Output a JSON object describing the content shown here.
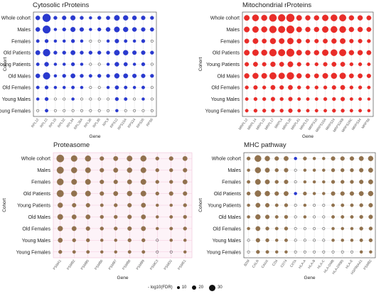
{
  "legend": {
    "title": "- log10(FDR)",
    "items": [
      {
        "label": "10",
        "value": 10
      },
      {
        "label": "20",
        "value": 20
      },
      {
        "label": "30",
        "value": 30
      }
    ]
  },
  "chart_data": [
    {
      "type": "scatter",
      "title": "Cytosolic rProteins",
      "xlabel": "Gene",
      "ylabel": "Cohort",
      "color": "#1f2fcc",
      "size_metric": "-log10(FDR)",
      "y": [
        "Whole cohort",
        "Males",
        "Females",
        "Old Patients",
        "Young Patients",
        "Old Males",
        "Old Females",
        "Young Males",
        "Young Females"
      ],
      "x": [
        "RPL12",
        "RPL13",
        "RPL15",
        "RPL32",
        "RPL34",
        "RPL35A",
        "RPL36",
        "RPL38",
        "RPL9",
        "RPS12",
        "RPS15A",
        "RPS24",
        "RPS26",
        "RPS6"
      ],
      "values": [
        [
          9,
          30,
          6,
          8,
          11,
          6,
          4,
          6,
          7,
          14,
          12,
          9,
          8,
          6
        ],
        [
          9,
          28,
          4,
          6,
          11,
          8,
          4,
          6,
          9,
          14,
          12,
          9,
          8,
          7
        ],
        [
          5,
          6,
          4,
          4,
          6,
          4,
          3,
          3,
          4,
          8,
          5,
          4,
          6,
          3
        ],
        [
          10,
          24,
          6,
          6,
          10,
          6,
          6,
          6,
          6,
          14,
          12,
          8,
          8,
          6
        ],
        [
          5,
          9,
          4,
          4,
          6,
          4,
          3,
          3,
          4,
          9,
          7,
          4,
          6,
          3
        ],
        [
          9,
          23,
          4,
          6,
          10,
          6,
          5,
          6,
          6,
          12,
          10,
          8,
          8,
          6
        ],
        [
          5,
          6,
          4,
          4,
          5,
          4,
          3,
          3,
          4,
          7,
          5,
          4,
          5,
          3
        ],
        [
          4,
          6,
          3,
          3,
          4,
          3,
          3,
          3,
          3,
          6,
          5,
          3,
          4,
          3
        ],
        [
          3,
          5,
          3,
          3,
          3,
          3,
          3,
          3,
          3,
          4,
          3,
          3,
          3,
          3
        ]
      ]
    },
    {
      "type": "scatter",
      "title": "Mitochondrial rProteins",
      "xlabel": "Gene",
      "ylabel": "Cohort",
      "color": "#e8221e",
      "size_metric": "-log10(FDR)",
      "y": [
        "Whole cohort",
        "Males",
        "Females",
        "Old Patients",
        "Young Patients",
        "Old Males",
        "Old Females",
        "Young Males",
        "Young Females"
      ],
      "x": [
        "MRPL12",
        "MRPL14",
        "MRPL15",
        "MRPL17",
        "MRPL4",
        "MRPL28",
        "MRPL41",
        "MRPL51",
        "MRPS16",
        "MRPS18A",
        "MRPS24",
        "MRPS26B",
        "MRPS26C",
        "MRPS34",
        "MRPS6"
      ],
      "values": [
        [
          14,
          20,
          16,
          26,
          24,
          30,
          14,
          12,
          12,
          18,
          20,
          22,
          12,
          12,
          10
        ],
        [
          14,
          18,
          16,
          24,
          22,
          28,
          14,
          12,
          12,
          18,
          20,
          20,
          12,
          12,
          10
        ],
        [
          10,
          14,
          10,
          16,
          14,
          18,
          10,
          8,
          8,
          10,
          12,
          14,
          8,
          8,
          6
        ],
        [
          14,
          18,
          16,
          24,
          22,
          28,
          14,
          12,
          12,
          18,
          20,
          22,
          12,
          12,
          10
        ],
        [
          8,
          10,
          8,
          12,
          10,
          14,
          8,
          6,
          6,
          8,
          10,
          10,
          6,
          6,
          5
        ],
        [
          12,
          16,
          14,
          22,
          18,
          24,
          12,
          10,
          10,
          14,
          16,
          18,
          10,
          10,
          8
        ],
        [
          6,
          8,
          6,
          10,
          8,
          10,
          6,
          6,
          6,
          6,
          8,
          10,
          6,
          6,
          5
        ],
        [
          5,
          6,
          6,
          8,
          6,
          8,
          5,
          5,
          5,
          6,
          6,
          8,
          5,
          5,
          4
        ],
        [
          5,
          6,
          6,
          6,
          6,
          8,
          5,
          5,
          5,
          5,
          6,
          6,
          5,
          5,
          4
        ]
      ]
    },
    {
      "type": "scatter",
      "title": "Proteasome",
      "xlabel": "Gene",
      "ylabel": "Cohort",
      "color": "#8b6a44",
      "size_metric": "-log10(FDR)",
      "y": [
        "Whole cohort",
        "Males",
        "Females",
        "Old Patients",
        "Young Patients",
        "Old Males",
        "Old Females",
        "Young Males",
        "Young Females"
      ],
      "x": [
        "PSMA1",
        "PSMB2",
        "PSMB5",
        "PSMB6",
        "PSMB7",
        "PSMB8",
        "PSMB9",
        "PSMC3",
        "PSMD2",
        "PSME1"
      ],
      "values": [
        [
          26,
          18,
          16,
          8,
          10,
          14,
          16,
          6,
          8,
          10
        ],
        [
          22,
          16,
          14,
          8,
          10,
          12,
          14,
          6,
          6,
          8
        ],
        [
          20,
          14,
          14,
          8,
          8,
          10,
          14,
          6,
          6,
          10
        ],
        [
          22,
          16,
          14,
          8,
          10,
          12,
          14,
          6,
          8,
          8
        ],
        [
          12,
          8,
          8,
          5,
          6,
          8,
          10,
          4,
          4,
          6
        ],
        [
          14,
          10,
          10,
          6,
          6,
          8,
          10,
          4,
          5,
          6
        ],
        [
          12,
          10,
          8,
          6,
          6,
          8,
          10,
          4,
          5,
          6
        ],
        [
          10,
          6,
          6,
          4,
          4,
          6,
          6,
          3,
          4,
          4
        ],
        [
          6,
          5,
          5,
          4,
          4,
          5,
          5,
          3,
          3,
          4
        ]
      ]
    },
    {
      "type": "scatter",
      "title": "MHC pathway",
      "xlabel": "Gene",
      "ylabel": "Cohort",
      "color": "#8b6a44",
      "alt_color": "#1f2fcc",
      "size_metric": "-log10(FDR)",
      "y": [
        "Whole cohort",
        "Males",
        "Females",
        "Old Patients",
        "Young Patients",
        "Old Males",
        "Old Females",
        "Young Males",
        "Young Females"
      ],
      "x": [
        "B2M",
        "CALR",
        "CANX",
        "CD4",
        "CD74",
        "CIITA",
        "HLA-A",
        "HLA-B",
        "HLA-C",
        "HLA-DMB",
        "HLA-DRB5",
        "HLA-E",
        "HSP90AA1",
        "PSMB2"
      ],
      "values": [
        [
          6,
          20,
          12,
          8,
          10,
          4,
          6,
          4,
          4,
          8,
          8,
          8,
          10,
          12
        ],
        [
          4,
          16,
          10,
          6,
          8,
          3,
          4,
          4,
          4,
          6,
          6,
          6,
          8,
          10
        ],
        [
          5,
          14,
          10,
          6,
          8,
          3,
          4,
          4,
          4,
          6,
          6,
          6,
          8,
          10
        ],
        [
          6,
          18,
          12,
          8,
          10,
          4,
          6,
          4,
          4,
          8,
          8,
          8,
          10,
          12
        ],
        [
          4,
          10,
          8,
          5,
          6,
          3,
          4,
          3,
          3,
          5,
          5,
          5,
          6,
          8
        ],
        [
          4,
          12,
          8,
          5,
          6,
          3,
          4,
          3,
          3,
          5,
          5,
          5,
          6,
          8
        ],
        [
          4,
          10,
          6,
          5,
          6,
          3,
          3,
          3,
          3,
          4,
          4,
          4,
          6,
          6
        ],
        [
          3,
          8,
          6,
          4,
          5,
          3,
          3,
          3,
          3,
          4,
          4,
          4,
          5,
          6
        ],
        [
          3,
          6,
          5,
          4,
          4,
          3,
          3,
          3,
          3,
          3,
          3,
          3,
          4,
          4
        ]
      ],
      "alt_color_cells": [
        [
          0,
          5
        ],
        [
          1,
          5
        ],
        [
          3,
          5
        ],
        [
          5,
          5
        ]
      ]
    }
  ]
}
